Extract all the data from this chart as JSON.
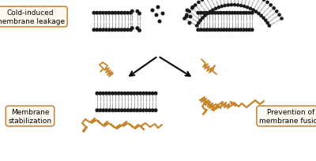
{
  "bg_color": "#ffffff",
  "label_box_edge": "#cc8844",
  "label_text_color": "#000000",
  "membrane_color": "#1a1a1a",
  "tail_color": "#aaaaaa",
  "protein_color": "#c8842a",
  "arrow_color": "#000000",
  "labels": {
    "top_left": "Cold-induced\nmembrane leakage",
    "bottom_left": "Membrane\nstabilization",
    "bottom_right": "Prevention of\nmembrane fusion"
  },
  "label_fontsize": 6.5,
  "fig_width": 4.0,
  "fig_height": 2.05,
  "dpi": 100
}
